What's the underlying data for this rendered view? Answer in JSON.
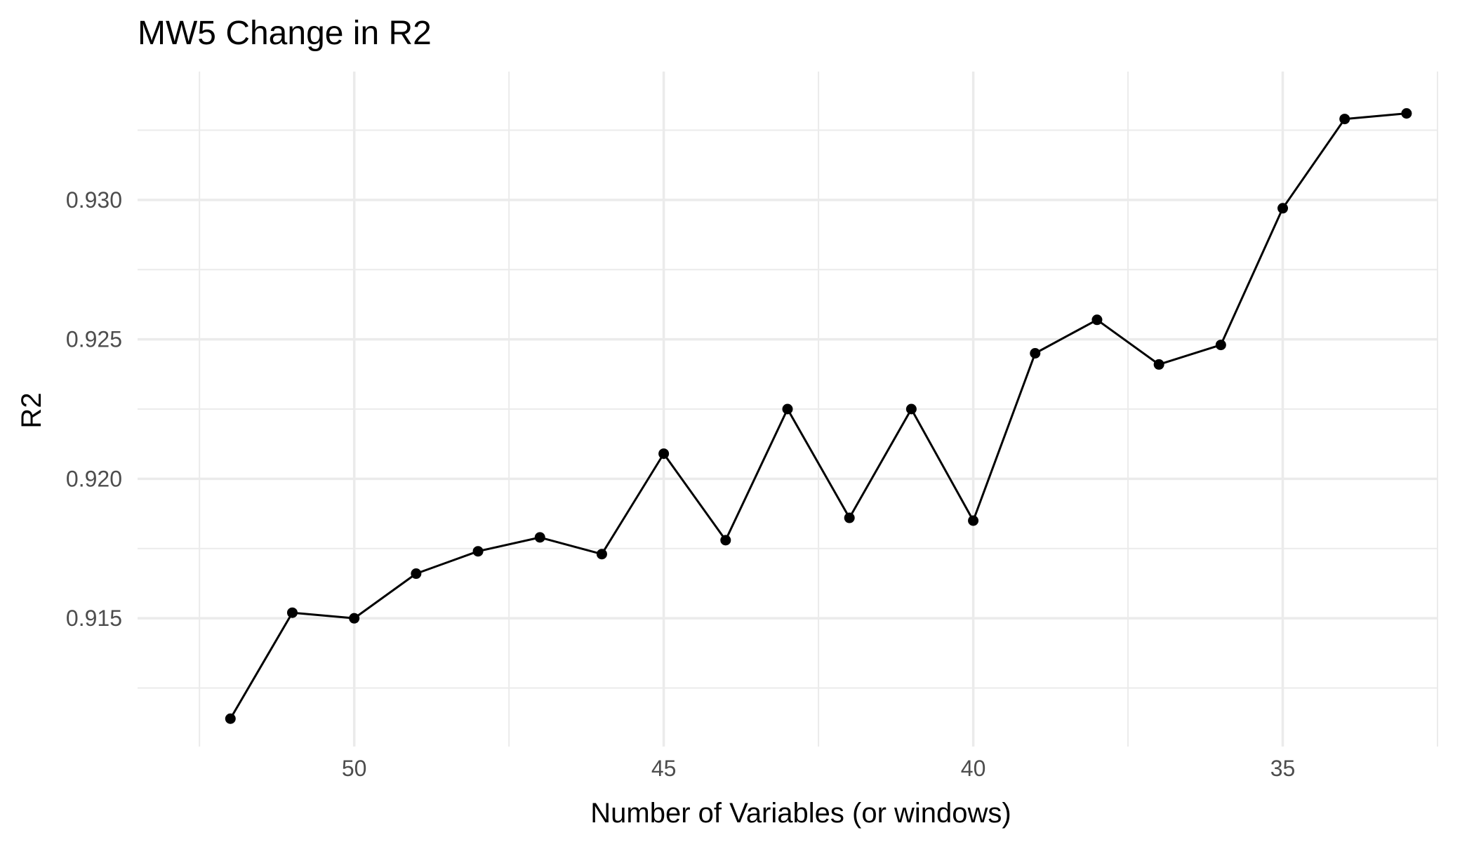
{
  "chart_data": {
    "type": "line",
    "title": "MW5 Change in R2",
    "xlabel": "Number of Variables (or windows)",
    "ylabel": "R2",
    "x_reversed": true,
    "xlim": [
      32.5,
      53.5
    ],
    "ylim": [
      0.9104,
      0.9346
    ],
    "x_ticks": [
      50,
      45,
      40,
      35
    ],
    "x_tick_labels": [
      "50",
      "45",
      "40",
      "35"
    ],
    "y_ticks": [
      0.915,
      0.92,
      0.925,
      0.93
    ],
    "y_tick_labels": [
      "0.915",
      "0.920",
      "0.925",
      "0.930"
    ],
    "grid": true,
    "line_color": "#000000",
    "series": [
      {
        "x": [
          52,
          51,
          50,
          49,
          48,
          47,
          46,
          45,
          44,
          43,
          42,
          41,
          40,
          39,
          38,
          37,
          36,
          35,
          34,
          33
        ],
        "values": [
          0.9114,
          0.9152,
          0.915,
          0.9166,
          0.9174,
          0.9179,
          0.9173,
          0.9209,
          0.9178,
          0.9225,
          0.9186,
          0.9225,
          0.9185,
          0.9245,
          0.9257,
          0.9241,
          0.9248,
          0.9297,
          0.9329,
          0.9331
        ]
      }
    ]
  }
}
